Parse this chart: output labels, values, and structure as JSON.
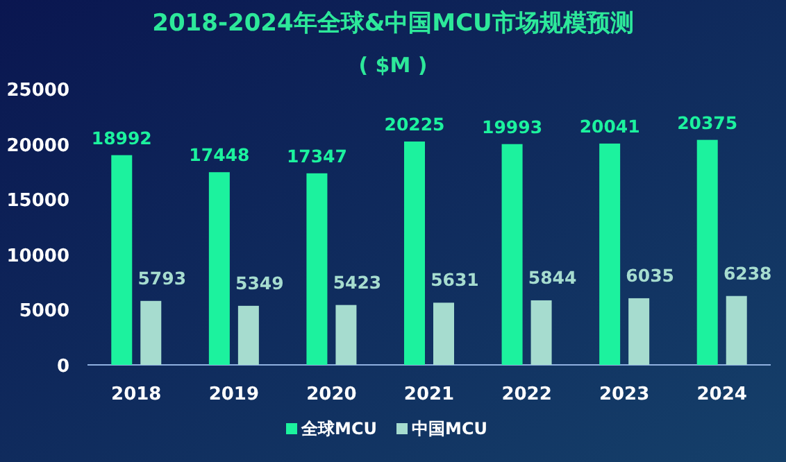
{
  "chart_data": {
    "type": "bar",
    "title": "2018-2024年全球&中国MCU市场规模预测",
    "subtitle": "( $M )",
    "categories": [
      "2018",
      "2019",
      "2020",
      "2021",
      "2022",
      "2023",
      "2024"
    ],
    "series": [
      {
        "name": "全球MCU",
        "color": "#1cf29e",
        "values": [
          18992,
          17448,
          17347,
          20225,
          19993,
          20041,
          20375
        ]
      },
      {
        "name": "中国MCU",
        "color": "#a6dccf",
        "values": [
          5793,
          5349,
          5423,
          5631,
          5844,
          6035,
          6238
        ]
      }
    ],
    "ylim": [
      0,
      25000
    ],
    "yticks": [
      0,
      5000,
      10000,
      15000,
      20000,
      25000
    ],
    "data_labels": true,
    "legend": "bottom",
    "grid": false
  }
}
